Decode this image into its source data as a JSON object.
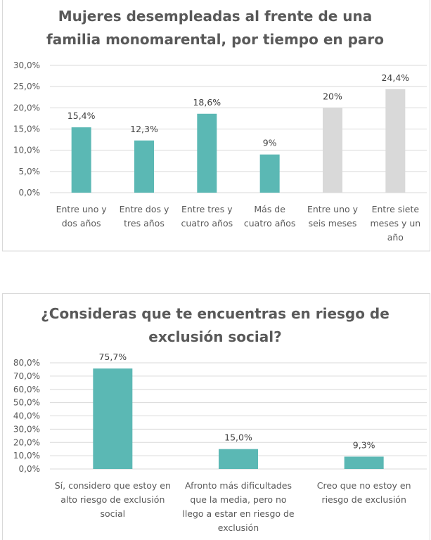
{
  "chart_data": [
    {
      "type": "bar",
      "title": [
        "Mujeres desempleadas al frente de una",
        "familia monomarental, por tiempo en paro"
      ],
      "categories": [
        [
          "Entre uno y",
          "dos años"
        ],
        [
          "Entre dos y",
          "tres años"
        ],
        [
          "Entre tres y",
          "cuatro años"
        ],
        [
          "Más de",
          "cuatro años"
        ],
        [
          "Entre uno y",
          "seis meses"
        ],
        [
          "Entre siete",
          "meses y un",
          "año"
        ]
      ],
      "values": [
        15.4,
        12.3,
        18.6,
        9,
        20,
        24.4
      ],
      "data_labels": [
        "15,4%",
        "12,3%",
        "18,6%",
        "9%",
        "20%",
        "24,4%"
      ],
      "bar_colors": [
        "#5BB8B4",
        "#5BB8B4",
        "#5BB8B4",
        "#5BB8B4",
        "#D9D9D9",
        "#D9D9D9"
      ],
      "yticks": [
        "0,0%",
        "5,0%",
        "10,0%",
        "15,0%",
        "20,0%",
        "25,0%",
        "30,0%"
      ],
      "ylim": [
        0,
        30
      ],
      "ystep": 5,
      "grid": true,
      "xlabel": "",
      "ylabel": ""
    },
    {
      "type": "bar",
      "title": [
        "¿Consideras que te encuentras en riesgo de",
        "exclusión social?"
      ],
      "categories": [
        [
          "Sí, considero que estoy en",
          "alto riesgo de exclusión",
          "social"
        ],
        [
          "Afronto más dificultades",
          "que la media, pero no",
          "llego a estar en riesgo de",
          "exclusión"
        ],
        [
          "Creo que no estoy en",
          "riesgo de exclusión"
        ]
      ],
      "values": [
        75.7,
        15.0,
        9.3
      ],
      "data_labels": [
        "75,7%",
        "15,0%",
        "9,3%"
      ],
      "bar_colors": [
        "#5BB8B4",
        "#5BB8B4",
        "#5BB8B4"
      ],
      "yticks": [
        "0,0%",
        "10,0%",
        "20,0%",
        "30,0%",
        "40,0%",
        "50,0%",
        "60,0%",
        "70,0%",
        "80,0%"
      ],
      "ylim": [
        0,
        80
      ],
      "ystep": 10,
      "grid": true,
      "xlabel": "",
      "ylabel": ""
    }
  ]
}
